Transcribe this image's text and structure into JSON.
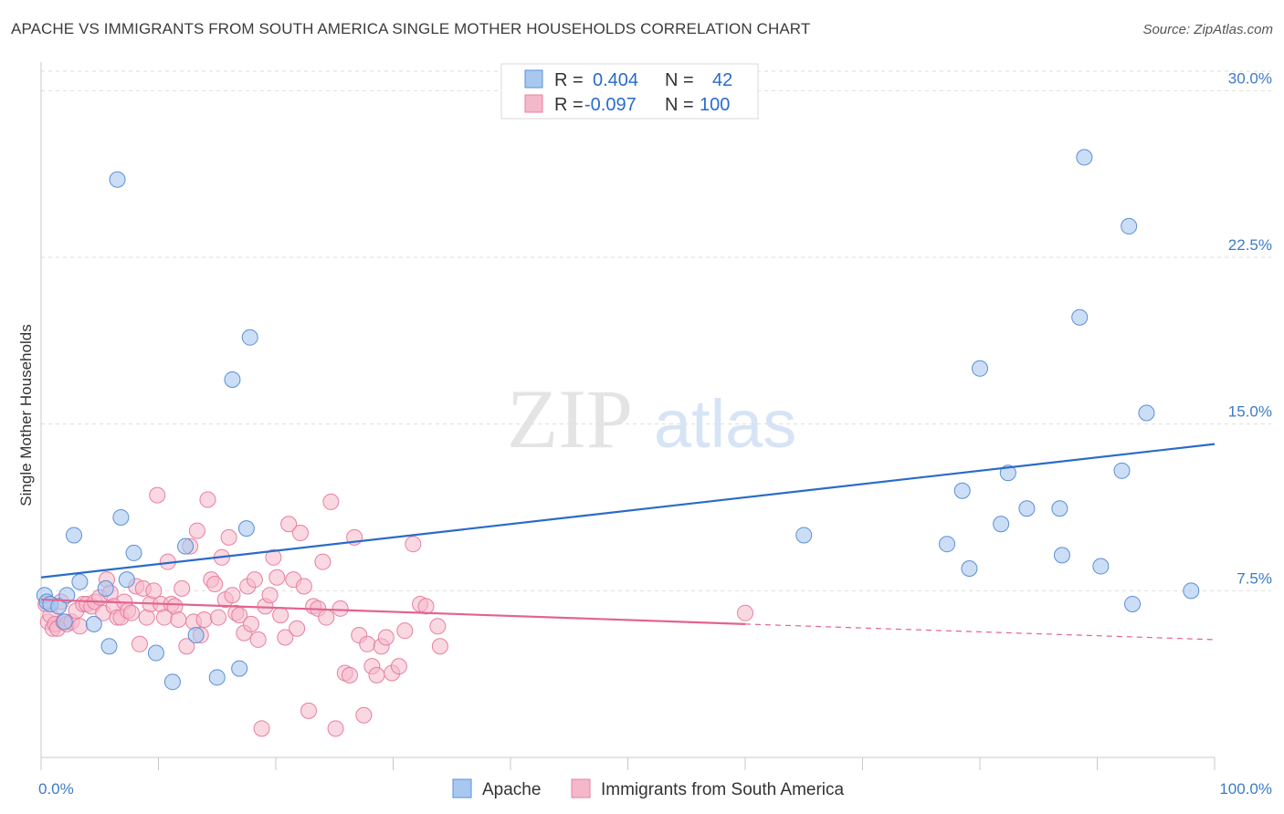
{
  "title": "APACHE VS IMMIGRANTS FROM SOUTH AMERICA SINGLE MOTHER HOUSEHOLDS CORRELATION CHART",
  "source": "Source: ZipAtlas.com",
  "watermark": {
    "zip": "ZIP",
    "atlas": "atlas"
  },
  "colors": {
    "apache_fill": "#a9c8f0",
    "apache_stroke": "#5b8fd6",
    "apache_line": "#2a6bc9",
    "sa_fill": "#f5b8cb",
    "sa_stroke": "#e87fa0",
    "sa_line": "#e3638f",
    "tick_color": "#3d7bc8",
    "grid": "#dedede"
  },
  "legend": {
    "r_label": "R =",
    "n_label": "N =",
    "apache": {
      "r": "0.404",
      "n": "42"
    },
    "sa": {
      "r": "-0.097",
      "n": "100"
    }
  },
  "chart_data": {
    "type": "scatter",
    "title": "APACHE VS IMMIGRANTS FROM SOUTH AMERICA SINGLE MOTHER HOUSEHOLDS CORRELATION CHART",
    "xlabel": "",
    "ylabel": "Single Mother Households",
    "xlim": [
      0,
      100
    ],
    "ylim": [
      0,
      31
    ],
    "x_tick_labels": [
      "0.0%",
      "100.0%"
    ],
    "y_ticks": [
      7.5,
      15.0,
      22.5,
      30.0
    ],
    "y_tick_labels": [
      "7.5%",
      "15.0%",
      "22.5%",
      "30.0%"
    ],
    "grid": true,
    "legend_position": "top-center",
    "series": [
      {
        "name": "Apache",
        "trend": {
          "x": [
            0,
            100
          ],
          "y": [
            8.1,
            14.1
          ]
        },
        "points": [
          [
            0.3,
            7.3
          ],
          [
            0.5,
            7.0
          ],
          [
            0.8,
            6.9
          ],
          [
            1.5,
            6.8
          ],
          [
            2.2,
            7.3
          ],
          [
            2.0,
            6.1
          ],
          [
            2.8,
            10.0
          ],
          [
            3.3,
            7.9
          ],
          [
            4.5,
            6.0
          ],
          [
            5.5,
            7.6
          ],
          [
            5.8,
            5.0
          ],
          [
            6.5,
            26.0
          ],
          [
            6.8,
            10.8
          ],
          [
            7.3,
            8.0
          ],
          [
            7.9,
            9.2
          ],
          [
            9.8,
            4.7
          ],
          [
            11.2,
            3.4
          ],
          [
            12.3,
            9.5
          ],
          [
            13.2,
            5.5
          ],
          [
            15.0,
            3.6
          ],
          [
            16.3,
            17.0
          ],
          [
            16.9,
            4.0
          ],
          [
            17.5,
            10.3
          ],
          [
            17.8,
            18.9
          ],
          [
            65.0,
            10.0
          ],
          [
            77.2,
            9.6
          ],
          [
            78.5,
            12.0
          ],
          [
            79.1,
            8.5
          ],
          [
            80.0,
            17.5
          ],
          [
            81.8,
            10.5
          ],
          [
            82.4,
            12.8
          ],
          [
            84.0,
            11.2
          ],
          [
            86.8,
            11.2
          ],
          [
            87.0,
            9.1
          ],
          [
            88.5,
            19.8
          ],
          [
            88.9,
            27.0
          ],
          [
            90.3,
            8.6
          ],
          [
            92.1,
            12.9
          ],
          [
            92.7,
            23.9
          ],
          [
            93.0,
            6.9
          ],
          [
            94.2,
            15.5
          ],
          [
            98.0,
            7.5
          ]
        ]
      },
      {
        "name": "Immigrants from South America",
        "trend_solid": {
          "x": [
            0,
            60
          ],
          "y": [
            7.1,
            6.0
          ]
        },
        "trend_dashed": {
          "x": [
            60,
            100
          ],
          "y": [
            6.0,
            5.3
          ]
        },
        "points": [
          [
            0.4,
            6.9
          ],
          [
            0.6,
            6.1
          ],
          [
            0.8,
            6.4
          ],
          [
            1.0,
            5.8
          ],
          [
            1.2,
            6.0
          ],
          [
            1.4,
            5.8
          ],
          [
            1.7,
            7.0
          ],
          [
            1.9,
            6.1
          ],
          [
            2.2,
            6.0
          ],
          [
            2.6,
            6.1
          ],
          [
            3.0,
            6.6
          ],
          [
            3.3,
            5.9
          ],
          [
            3.6,
            6.9
          ],
          [
            3.9,
            6.9
          ],
          [
            4.3,
            6.8
          ],
          [
            4.6,
            7.0
          ],
          [
            5.0,
            7.2
          ],
          [
            5.3,
            6.5
          ],
          [
            5.6,
            8.0
          ],
          [
            5.9,
            7.4
          ],
          [
            6.2,
            6.8
          ],
          [
            6.5,
            6.3
          ],
          [
            6.8,
            6.3
          ],
          [
            7.1,
            7.0
          ],
          [
            7.4,
            6.6
          ],
          [
            7.7,
            6.5
          ],
          [
            8.1,
            7.7
          ],
          [
            8.4,
            5.1
          ],
          [
            8.7,
            7.6
          ],
          [
            9.0,
            6.3
          ],
          [
            9.3,
            6.9
          ],
          [
            9.6,
            7.5
          ],
          [
            9.9,
            11.8
          ],
          [
            10.2,
            6.9
          ],
          [
            10.5,
            6.3
          ],
          [
            10.8,
            8.8
          ],
          [
            11.1,
            6.9
          ],
          [
            11.4,
            6.8
          ],
          [
            11.7,
            6.2
          ],
          [
            12.0,
            7.6
          ],
          [
            12.4,
            5.0
          ],
          [
            12.7,
            9.5
          ],
          [
            13.0,
            6.1
          ],
          [
            13.3,
            10.2
          ],
          [
            13.6,
            5.5
          ],
          [
            13.9,
            6.2
          ],
          [
            14.2,
            11.6
          ],
          [
            14.5,
            8.0
          ],
          [
            14.8,
            7.8
          ],
          [
            15.1,
            6.3
          ],
          [
            15.4,
            9.0
          ],
          [
            15.7,
            7.1
          ],
          [
            16.0,
            9.9
          ],
          [
            16.3,
            7.3
          ],
          [
            16.6,
            6.5
          ],
          [
            16.9,
            6.4
          ],
          [
            17.3,
            5.6
          ],
          [
            17.6,
            7.7
          ],
          [
            17.9,
            6.0
          ],
          [
            18.2,
            8.0
          ],
          [
            18.5,
            5.3
          ],
          [
            18.8,
            1.3
          ],
          [
            19.1,
            6.8
          ],
          [
            19.5,
            7.3
          ],
          [
            19.8,
            9.0
          ],
          [
            20.1,
            8.1
          ],
          [
            20.4,
            6.4
          ],
          [
            20.8,
            5.4
          ],
          [
            21.1,
            10.5
          ],
          [
            21.5,
            8.0
          ],
          [
            21.8,
            5.8
          ],
          [
            22.1,
            10.1
          ],
          [
            22.4,
            7.7
          ],
          [
            22.8,
            2.1
          ],
          [
            23.2,
            6.8
          ],
          [
            23.6,
            6.7
          ],
          [
            24.0,
            8.8
          ],
          [
            24.3,
            6.3
          ],
          [
            24.7,
            11.5
          ],
          [
            25.1,
            1.3
          ],
          [
            25.5,
            6.7
          ],
          [
            25.9,
            3.8
          ],
          [
            26.3,
            3.7
          ],
          [
            26.7,
            9.9
          ],
          [
            27.1,
            5.5
          ],
          [
            27.5,
            1.9
          ],
          [
            27.8,
            5.1
          ],
          [
            28.2,
            4.1
          ],
          [
            28.6,
            3.7
          ],
          [
            29.0,
            5.0
          ],
          [
            29.4,
            5.4
          ],
          [
            29.9,
            3.8
          ],
          [
            30.5,
            4.1
          ],
          [
            31.0,
            5.7
          ],
          [
            31.7,
            9.6
          ],
          [
            32.3,
            6.9
          ],
          [
            32.8,
            6.8
          ],
          [
            33.8,
            5.9
          ],
          [
            34.0,
            5.0
          ],
          [
            60.0,
            6.5
          ]
        ]
      }
    ]
  }
}
